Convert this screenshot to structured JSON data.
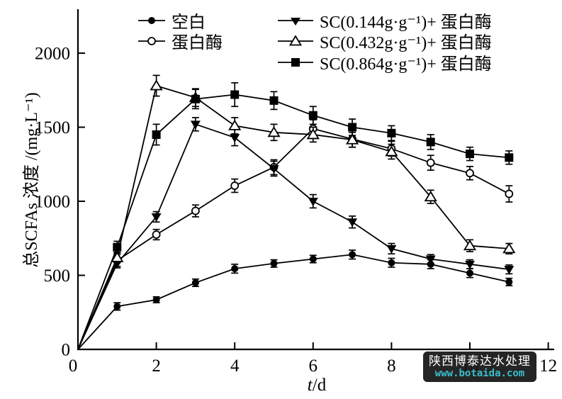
{
  "figure": {
    "background": "#ffffff",
    "ink_color": "#000000"
  },
  "axes": {
    "x_label_var": "t",
    "x_label_rest": "/d",
    "y_label": "总SCFAs 浓度 /(mg·L⁻¹)"
  },
  "watermark": {
    "line1": "陕西博泰达水处理",
    "line2": "www.botaida.com",
    "bg_color": "#151515",
    "text_color": "#ffffff",
    "url_color": "#2cb9c9"
  },
  "chart_data": {
    "type": "line",
    "title": "",
    "xlabel": "t/d",
    "ylabel": "总SCFAs 浓度 /(mg·L⁻¹)",
    "grid": false,
    "legend_position": "top",
    "xlim": [
      0,
      12.2
    ],
    "ylim": [
      0,
      2300
    ],
    "x_ticks": [
      0,
      2,
      4,
      6,
      8,
      10,
      12
    ],
    "y_ticks": [
      0,
      500,
      1000,
      1500,
      2000
    ],
    "x": [
      0,
      1,
      2,
      3,
      4,
      5,
      6,
      7,
      8,
      9,
      10,
      11
    ],
    "series": [
      {
        "key": "blank",
        "name": "空白",
        "marker": "filled-circle",
        "values": [
          0,
          290,
          335,
          450,
          545,
          580,
          610,
          640,
          585,
          575,
          515,
          455
        ],
        "errors": [
          0,
          25,
          20,
          25,
          30,
          25,
          25,
          30,
          30,
          30,
          30,
          25
        ]
      },
      {
        "key": "protease",
        "name": "蛋白酶",
        "marker": "open-circle",
        "values": [
          0,
          600,
          775,
          935,
          1105,
          1230,
          1490,
          1420,
          1355,
          1260,
          1190,
          1050
        ],
        "errors": [
          0,
          40,
          35,
          40,
          45,
          50,
          60,
          55,
          50,
          50,
          45,
          55
        ]
      },
      {
        "key": "sc144",
        "name": "SC(0.144g·g⁻¹)+ 蛋白酶",
        "marker": "filled-triangle-down",
        "values": [
          0,
          580,
          895,
          1520,
          1430,
          1220,
          1000,
          860,
          680,
          610,
          575,
          540
        ],
        "errors": [
          0,
          30,
          35,
          45,
          55,
          50,
          45,
          40,
          35,
          30,
          30,
          30
        ]
      },
      {
        "key": "sc432",
        "name": "SC(0.432g·g⁻¹)+ 蛋白酶",
        "marker": "open-triangle-up",
        "values": [
          0,
          620,
          1780,
          1700,
          1510,
          1465,
          1450,
          1415,
          1335,
          1030,
          700,
          680
        ],
        "errors": [
          0,
          35,
          70,
          60,
          55,
          55,
          50,
          50,
          50,
          45,
          40,
          35
        ]
      },
      {
        "key": "sc864",
        "name": "SC(0.864g·g⁻¹)+ 蛋白酶",
        "marker": "filled-square",
        "values": [
          0,
          690,
          1450,
          1690,
          1720,
          1680,
          1580,
          1500,
          1460,
          1400,
          1320,
          1295
        ],
        "errors": [
          0,
          40,
          70,
          65,
          80,
          60,
          60,
          55,
          50,
          50,
          45,
          45
        ]
      }
    ]
  }
}
